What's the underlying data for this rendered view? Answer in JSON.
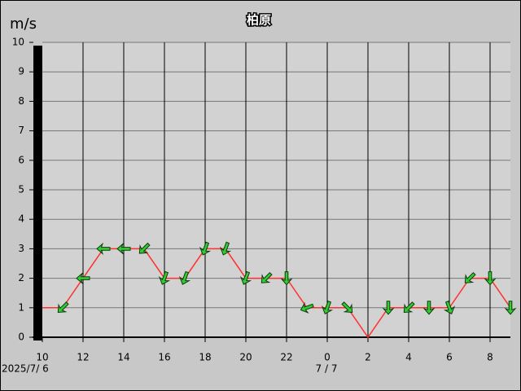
{
  "chart_data": {
    "type": "line",
    "title": "柏原",
    "ylabel": "m/s",
    "date_labels": [
      "2025/7/ 6",
      "7 / 7"
    ],
    "categories": [
      "10",
      null,
      "12",
      null,
      "14",
      null,
      "16",
      null,
      "18",
      null,
      "20",
      null,
      "22",
      null,
      "0",
      null,
      "2",
      null,
      "4",
      null,
      "6",
      null,
      "8",
      null
    ],
    "series": [
      {
        "color": "#ff3030",
        "values": [
          1,
          1,
          2,
          3,
          3,
          3,
          2,
          2,
          3,
          3,
          2,
          2,
          2,
          1,
          1,
          1,
          0,
          1,
          1,
          1,
          1,
          2,
          2,
          1
        ],
        "directions": [
          null,
          225,
          270,
          270,
          270,
          225,
          200,
          200,
          200,
          200,
          200,
          225,
          180,
          250,
          200,
          135,
          null,
          180,
          225,
          180,
          160,
          225,
          180,
          180
        ],
        "arrow_color": "#33cc33"
      }
    ],
    "ylim": [
      0,
      10
    ],
    "yticks": [
      0,
      1,
      2,
      3,
      4,
      5,
      6,
      7,
      8,
      9,
      10
    ],
    "grid": true
  }
}
